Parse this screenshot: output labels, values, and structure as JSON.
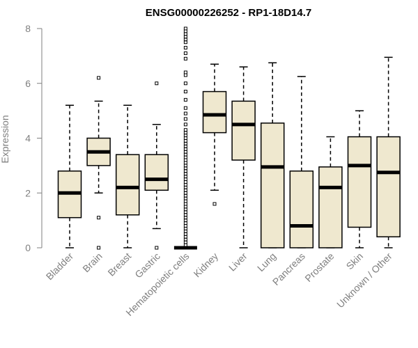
{
  "chart_data": {
    "type": "boxplot",
    "title": "ENSG00000226252 - RP1-18D14.7",
    "xlabel": "",
    "ylabel": "Expression",
    "ylim": [
      0,
      8
    ],
    "yticks": [
      0,
      2,
      4,
      6,
      8
    ],
    "box_fill": "#efe8cf",
    "categories": [
      "Bladder",
      "Brain",
      "Breast",
      "Gastric",
      "Hematopoietic cells",
      "Kidney",
      "Liver",
      "Lung",
      "Pancreas",
      "Prostate",
      "Skin",
      "Unknown / Other"
    ],
    "boxes": [
      {
        "min": 0,
        "q1": 1.1,
        "median": 2.0,
        "q3": 2.8,
        "max": 5.2,
        "outliers": []
      },
      {
        "min": 2.0,
        "q1": 3.0,
        "median": 3.5,
        "q3": 4.0,
        "max": 5.35,
        "outliers": [
          6.2,
          1.1,
          0.0
        ]
      },
      {
        "min": 0,
        "q1": 1.2,
        "median": 2.2,
        "q3": 3.4,
        "max": 5.2,
        "outliers": []
      },
      {
        "min": 0.7,
        "q1": 2.1,
        "median": 2.5,
        "q3": 3.4,
        "max": 4.5,
        "outliers": [
          6.0,
          0.0
        ]
      },
      {
        "min": 0,
        "q1": 0,
        "median": 0,
        "q3": 0,
        "max": 0,
        "outliers": [
          0.1,
          0.2,
          0.3,
          0.4,
          0.5,
          0.6,
          0.7,
          0.8,
          0.9,
          1.0,
          1.1,
          1.2,
          1.3,
          1.4,
          1.5,
          1.6,
          1.7,
          1.8,
          1.9,
          2.0,
          2.1,
          2.2,
          2.3,
          2.4,
          2.5,
          2.6,
          2.7,
          2.8,
          2.9,
          3.0,
          3.1,
          3.2,
          3.3,
          3.4,
          3.5,
          3.6,
          3.7,
          3.8,
          3.9,
          4.0,
          4.1,
          4.2,
          4.3,
          4.5,
          4.7,
          4.9,
          5.1,
          5.4,
          5.7,
          6.0,
          6.3,
          6.4,
          6.9,
          7.1,
          7.3,
          7.5,
          7.6,
          7.7,
          7.8,
          7.9,
          8.0
        ]
      },
      {
        "min": 2.1,
        "q1": 4.2,
        "median": 4.85,
        "q3": 5.7,
        "max": 6.7,
        "outliers": [
          1.6
        ]
      },
      {
        "min": 0,
        "q1": 3.2,
        "median": 4.5,
        "q3": 5.35,
        "max": 6.6,
        "outliers": []
      },
      {
        "min": 0,
        "q1": 0,
        "median": 2.95,
        "q3": 4.55,
        "max": 6.75,
        "outliers": []
      },
      {
        "min": 0,
        "q1": 0,
        "median": 0.8,
        "q3": 2.8,
        "max": 6.25,
        "outliers": []
      },
      {
        "min": 0,
        "q1": 0,
        "median": 2.2,
        "q3": 2.95,
        "max": 4.05,
        "outliers": []
      },
      {
        "min": 0,
        "q1": 0.75,
        "median": 3.0,
        "q3": 4.05,
        "max": 5.0,
        "outliers": []
      },
      {
        "min": 0,
        "q1": 0.4,
        "median": 2.75,
        "q3": 4.05,
        "max": 6.95,
        "outliers": []
      }
    ]
  }
}
